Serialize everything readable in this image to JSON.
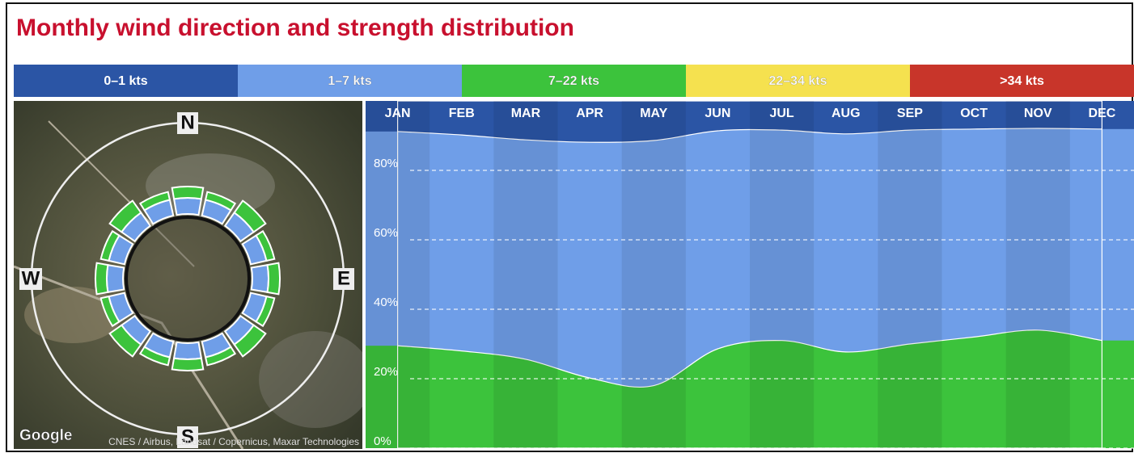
{
  "chart_data": {
    "type": "stacked_area",
    "title": "Monthly wind direction and strength distribution",
    "categories": [
      "JAN",
      "FEB",
      "MAR",
      "APR",
      "MAY",
      "JUN",
      "JUL",
      "AUG",
      "SEP",
      "OCT",
      "NOV",
      "DEC"
    ],
    "series": [
      {
        "name": "0–1 kts",
        "color": "#2b55a5",
        "values": [
          8.8,
          9.8,
          11.2,
          11.9,
          11.4,
          8.6,
          8.4,
          9.5,
          8.4,
          8.1,
          7.9,
          8.1
        ]
      },
      {
        "name": "1–7 kts",
        "color": "#6f9ee8",
        "values": [
          61.7,
          62.2,
          63.2,
          67.9,
          70.6,
          62.8,
          60.6,
          62.8,
          61.6,
          59.9,
          58.1,
          60.9
        ]
      },
      {
        "name": "7–22 kts",
        "color": "#3cc33c",
        "values": [
          29.5,
          28,
          25.6,
          20.2,
          18,
          28.6,
          31,
          27.7,
          30,
          32,
          34,
          31
        ]
      },
      {
        "name": "22–34 kts",
        "color": "#f5e14f",
        "values": [
          0,
          0,
          0,
          0,
          0,
          0,
          0,
          0,
          0,
          0,
          0,
          0
        ]
      },
      {
        "name": ">34 kts",
        "color": "#c8352a",
        "values": [
          0,
          0,
          0,
          0,
          0,
          0,
          0,
          0,
          0,
          0,
          0,
          0
        ]
      }
    ],
    "ylim": [
      0,
      100
    ],
    "yticks": [
      {
        "value": 0,
        "label": "0%"
      },
      {
        "value": 20,
        "label": "20%"
      },
      {
        "value": 40,
        "label": "40%"
      },
      {
        "value": 60,
        "label": "60%"
      },
      {
        "value": 80,
        "label": "80%"
      }
    ],
    "grid": true,
    "map": {
      "compass": [
        "N",
        "E",
        "S",
        "W"
      ],
      "logo": "Google",
      "attribution": "CNES / Airbus, Landsat / Copernicus, Maxar Technologies"
    }
  }
}
